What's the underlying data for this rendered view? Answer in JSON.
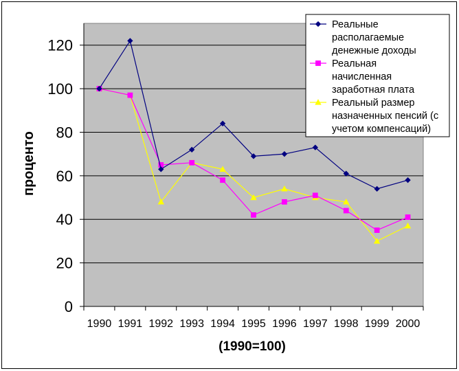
{
  "chart_data": {
    "type": "line",
    "title": "",
    "xlabel": "(1990=100)",
    "ylabel": "процентo",
    "ylim": [
      0,
      130
    ],
    "yticks": [
      0,
      20,
      40,
      60,
      80,
      100,
      120
    ],
    "grid": true,
    "legend_position": "top-right",
    "categories": [
      "1990",
      "1991",
      "1992",
      "1993",
      "1994",
      "1995",
      "1996",
      "1997",
      "1998",
      "1999",
      "2000"
    ],
    "series": [
      {
        "name": "Реальные располагаемые денежные доходы",
        "legend_lines": [
          "Реальные",
          "располагаемые",
          "денежные доходы"
        ],
        "color": "#000080",
        "marker": "diamond",
        "values": [
          100,
          122,
          63,
          72,
          84,
          69,
          70,
          73,
          61,
          54,
          58
        ]
      },
      {
        "name": "Реальная начисленная заработная плата",
        "legend_lines": [
          "Реальная",
          "начисленная",
          "заработная плата"
        ],
        "color": "#FF00FF",
        "marker": "square",
        "values": [
          100,
          97,
          65,
          66,
          58,
          42,
          48,
          51,
          44,
          35,
          41
        ]
      },
      {
        "name": "Реальный размер назначенных пенсий (с учетом компенсаций)",
        "legend_lines": [
          "Реальный размер",
          "назначенных пенсий (с",
          "учетом компенсаций)"
        ],
        "color": "#FFFF00",
        "marker": "triangle",
        "values": [
          100,
          97,
          48,
          66,
          63,
          50,
          54,
          50,
          48,
          30,
          37
        ]
      }
    ],
    "colors": {
      "plot_background": "#C0C0C0",
      "gridline": "#000000"
    }
  }
}
